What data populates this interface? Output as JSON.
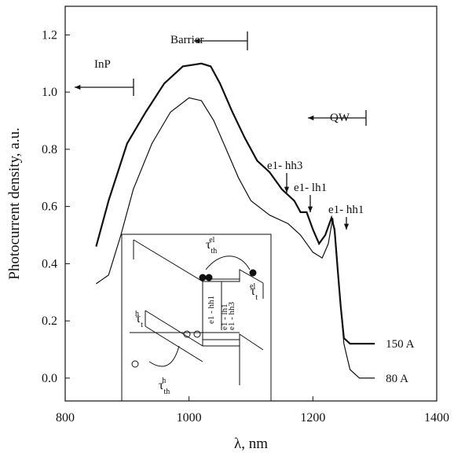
{
  "chart_data": {
    "type": "line",
    "xlabel": "λ, nm",
    "ylabel": "Photocurrent density, a.u.",
    "xlim": [
      800,
      1400
    ],
    "ylim": [
      -0.08,
      1.3
    ],
    "xticks": [
      800,
      1000,
      1200,
      1400
    ],
    "yticks": [
      {
        "value": 0,
        "label": "0.0"
      },
      {
        "value": 0.2,
        "label": "0.2"
      },
      {
        "value": 0.4,
        "label": "0.4"
      },
      {
        "value": 0.6,
        "label": "0.6"
      },
      {
        "value": 0.8,
        "label": "0.8"
      },
      {
        "value": 1,
        "label": "1.0"
      },
      {
        "value": 1.2,
        "label": "1.2"
      }
    ],
    "series": [
      {
        "name": "150 A",
        "color": "#111",
        "width": 2.2,
        "x": [
          850,
          870,
          900,
          930,
          960,
          990,
          1020,
          1035,
          1050,
          1070,
          1090,
          1110,
          1130,
          1150,
          1170,
          1180,
          1190,
          1200,
          1210,
          1220,
          1230,
          1235,
          1240,
          1245,
          1250,
          1260,
          1300
        ],
        "values": [
          0.46,
          0.62,
          0.82,
          0.93,
          1.03,
          1.09,
          1.1,
          1.09,
          1.03,
          0.93,
          0.84,
          0.76,
          0.72,
          0.66,
          0.62,
          0.58,
          0.58,
          0.52,
          0.47,
          0.5,
          0.56,
          0.52,
          0.38,
          0.25,
          0.14,
          0.12,
          0.12
        ]
      },
      {
        "name": "80 A",
        "color": "#111",
        "width": 1.2,
        "x": [
          850,
          870,
          890,
          910,
          940,
          970,
          1000,
          1020,
          1040,
          1060,
          1080,
          1100,
          1130,
          1160,
          1180,
          1200,
          1215,
          1225,
          1232,
          1238,
          1243,
          1250,
          1260,
          1275,
          1300
        ],
        "values": [
          0.33,
          0.36,
          0.5,
          0.66,
          0.82,
          0.93,
          0.98,
          0.97,
          0.9,
          0.8,
          0.7,
          0.62,
          0.57,
          0.54,
          0.5,
          0.44,
          0.42,
          0.47,
          0.56,
          0.45,
          0.3,
          0.12,
          0.03,
          0,
          0
        ]
      }
    ],
    "annotations": [
      "InP",
      "Barrier",
      "QW",
      "e1- hh3",
      "e1- lh1",
      "e1- hh1"
    ],
    "inset_labels": [
      {
        "base": "τ",
        "sub": "th",
        "sup": "el"
      },
      {
        "base": "τ",
        "sub": "t",
        "sup": "el"
      },
      {
        "base": "τ",
        "sub": "t",
        "sup": "h"
      },
      {
        "base": "τ",
        "sub": "th",
        "sup": "h"
      },
      "e1 - hh1",
      "e1 - lh1",
      "e1 - hh3"
    ]
  }
}
